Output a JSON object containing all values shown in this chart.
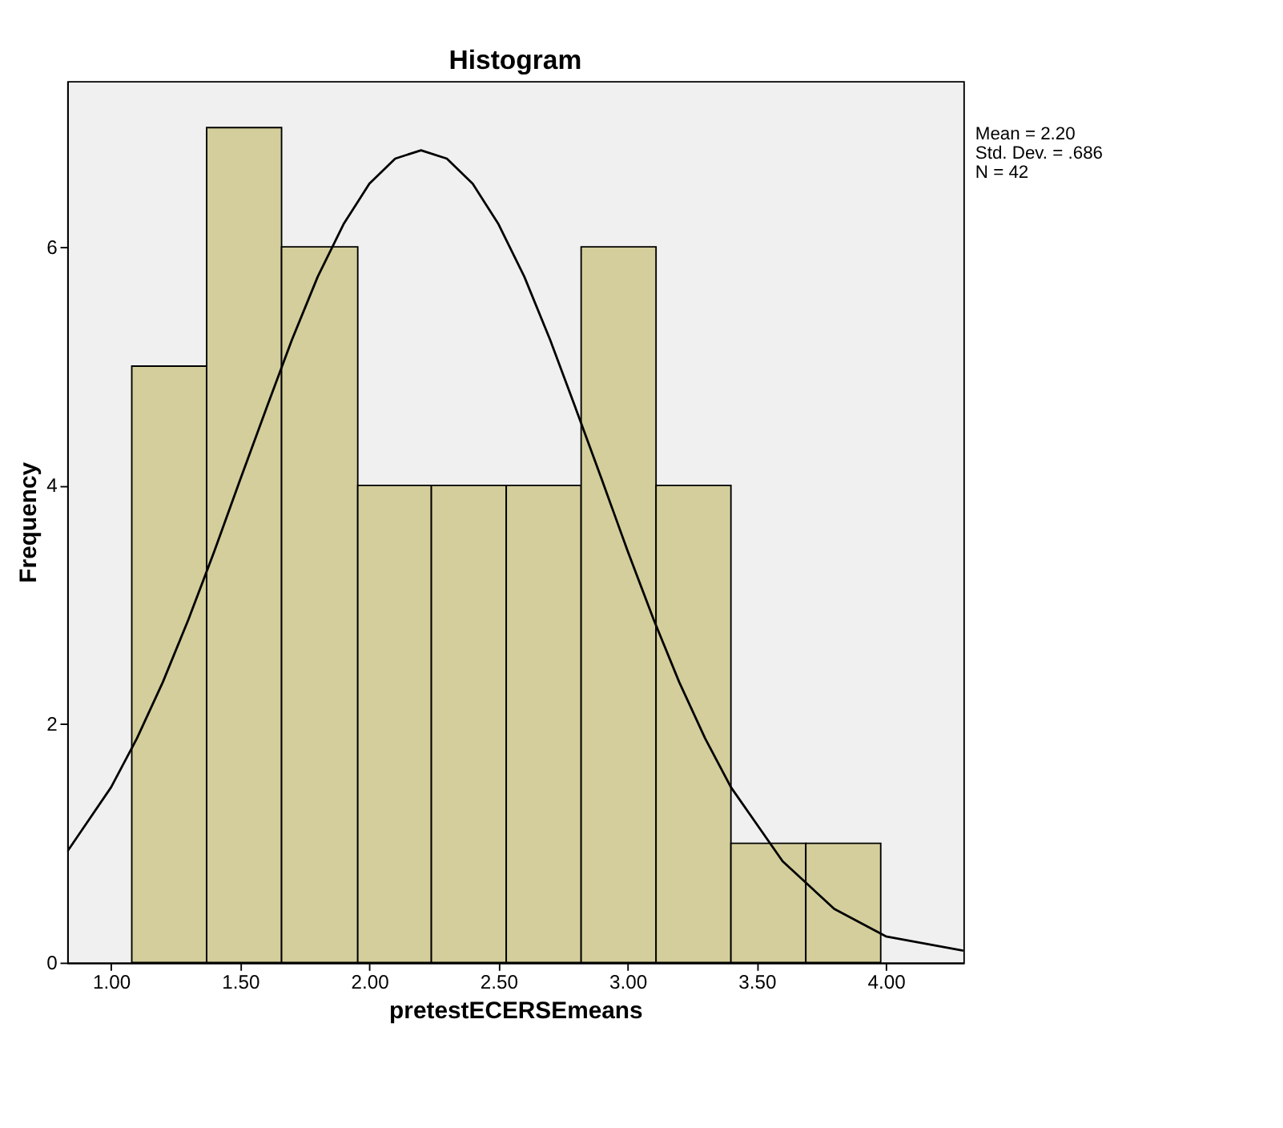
{
  "chart_data": {
    "type": "histogram",
    "title": "Histogram",
    "xlabel": "pretestECERSEmeans",
    "ylabel": "Frequency",
    "bins": [
      1.08,
      1.37,
      1.66,
      1.955,
      2.24,
      2.53,
      2.82,
      3.11,
      3.4,
      3.69,
      3.98
    ],
    "values": [
      5,
      7,
      6,
      4,
      4,
      4,
      6,
      4,
      1,
      1
    ],
    "color": "#d3ce9b",
    "series": [
      {
        "type": "line",
        "color": "#000000",
        "x": [
          0.83,
          1.0,
          1.1,
          1.2,
          1.3,
          1.4,
          1.5,
          1.6,
          1.7,
          1.8,
          1.9,
          2.0,
          2.1,
          2.2,
          2.3,
          2.4,
          2.5,
          2.6,
          2.7,
          2.8,
          2.9,
          3.0,
          3.1,
          3.2,
          3.3,
          3.4,
          3.6,
          3.8,
          4.0,
          4.3
        ],
        "values": [
          0.93,
          1.47,
          1.88,
          2.35,
          2.88,
          3.45,
          4.05,
          4.64,
          5.22,
          5.75,
          6.19,
          6.53,
          6.74,
          6.81,
          6.74,
          6.53,
          6.19,
          5.75,
          5.22,
          4.64,
          4.05,
          3.45,
          2.88,
          2.35,
          1.88,
          1.47,
          0.85,
          0.45,
          0.22,
          0.1
        ]
      }
    ],
    "xlim": [
      0.83,
      4.3
    ],
    "xticks": [
      {
        "value": 1,
        "label": "1.00"
      },
      {
        "value": 1.5,
        "label": "1.50"
      },
      {
        "value": 2,
        "label": "2.00"
      },
      {
        "value": 2.5,
        "label": "2.50"
      },
      {
        "value": 3,
        "label": "3.00"
      },
      {
        "value": 3.5,
        "label": "3.50"
      },
      {
        "value": 4,
        "label": "4.00"
      }
    ],
    "ylim": [
      0,
      7.39
    ],
    "yticks": [
      0,
      2,
      4,
      6
    ],
    "grid": false,
    "annotations": [
      "Mean = 2.20",
      "Std. Dev. = .686",
      "N = 42"
    ]
  }
}
